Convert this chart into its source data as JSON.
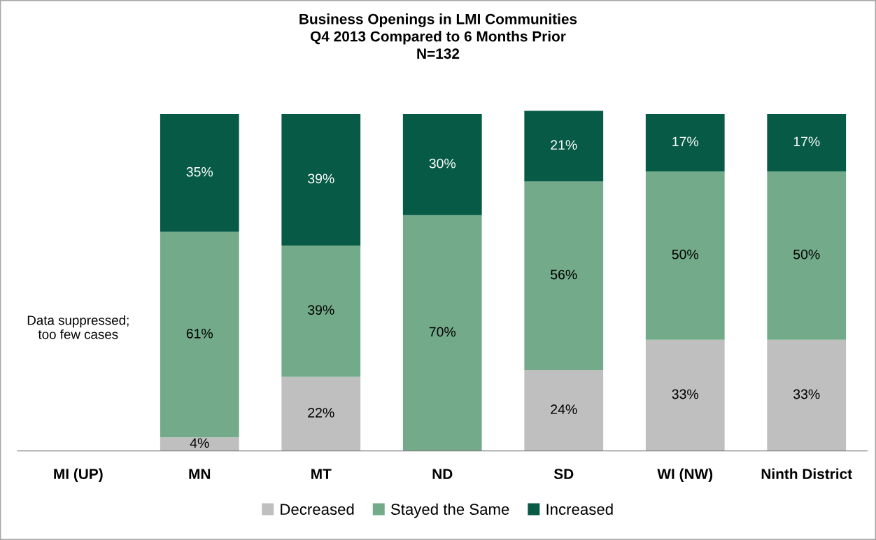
{
  "chart_data": {
    "type": "bar",
    "stacked": true,
    "title": "Business Openings in LMI Communities\nQ4 2013 Compared to 6 Months Prior\nN=132",
    "categories": [
      "MI (UP)",
      "MN",
      "MT",
      "ND",
      "SD",
      "WI (NW)",
      "Ninth District"
    ],
    "series": [
      {
        "name": "Decreased",
        "color": "#bfbfbf",
        "values": [
          null,
          4,
          22,
          0,
          24,
          33,
          33
        ],
        "value_labels": [
          null,
          "4%",
          "22%",
          null,
          "24%",
          "33%",
          "33%"
        ]
      },
      {
        "name": "Stayed the Same",
        "color": "#73ab8a",
        "values": [
          null,
          61,
          39,
          70,
          56,
          50,
          50
        ],
        "value_labels": [
          null,
          "61%",
          "39%",
          "70%",
          "56%",
          "50%",
          "50%"
        ]
      },
      {
        "name": "Increased",
        "color": "#065a46",
        "values": [
          null,
          35,
          39,
          30,
          21,
          17,
          17
        ],
        "value_labels": [
          null,
          "35%",
          "39%",
          "30%",
          "21%",
          "17%",
          "17%"
        ]
      }
    ],
    "annotations": [
      "Data suppressed;\ntoo few cases"
    ],
    "legend": "bottom",
    "grid": false
  }
}
